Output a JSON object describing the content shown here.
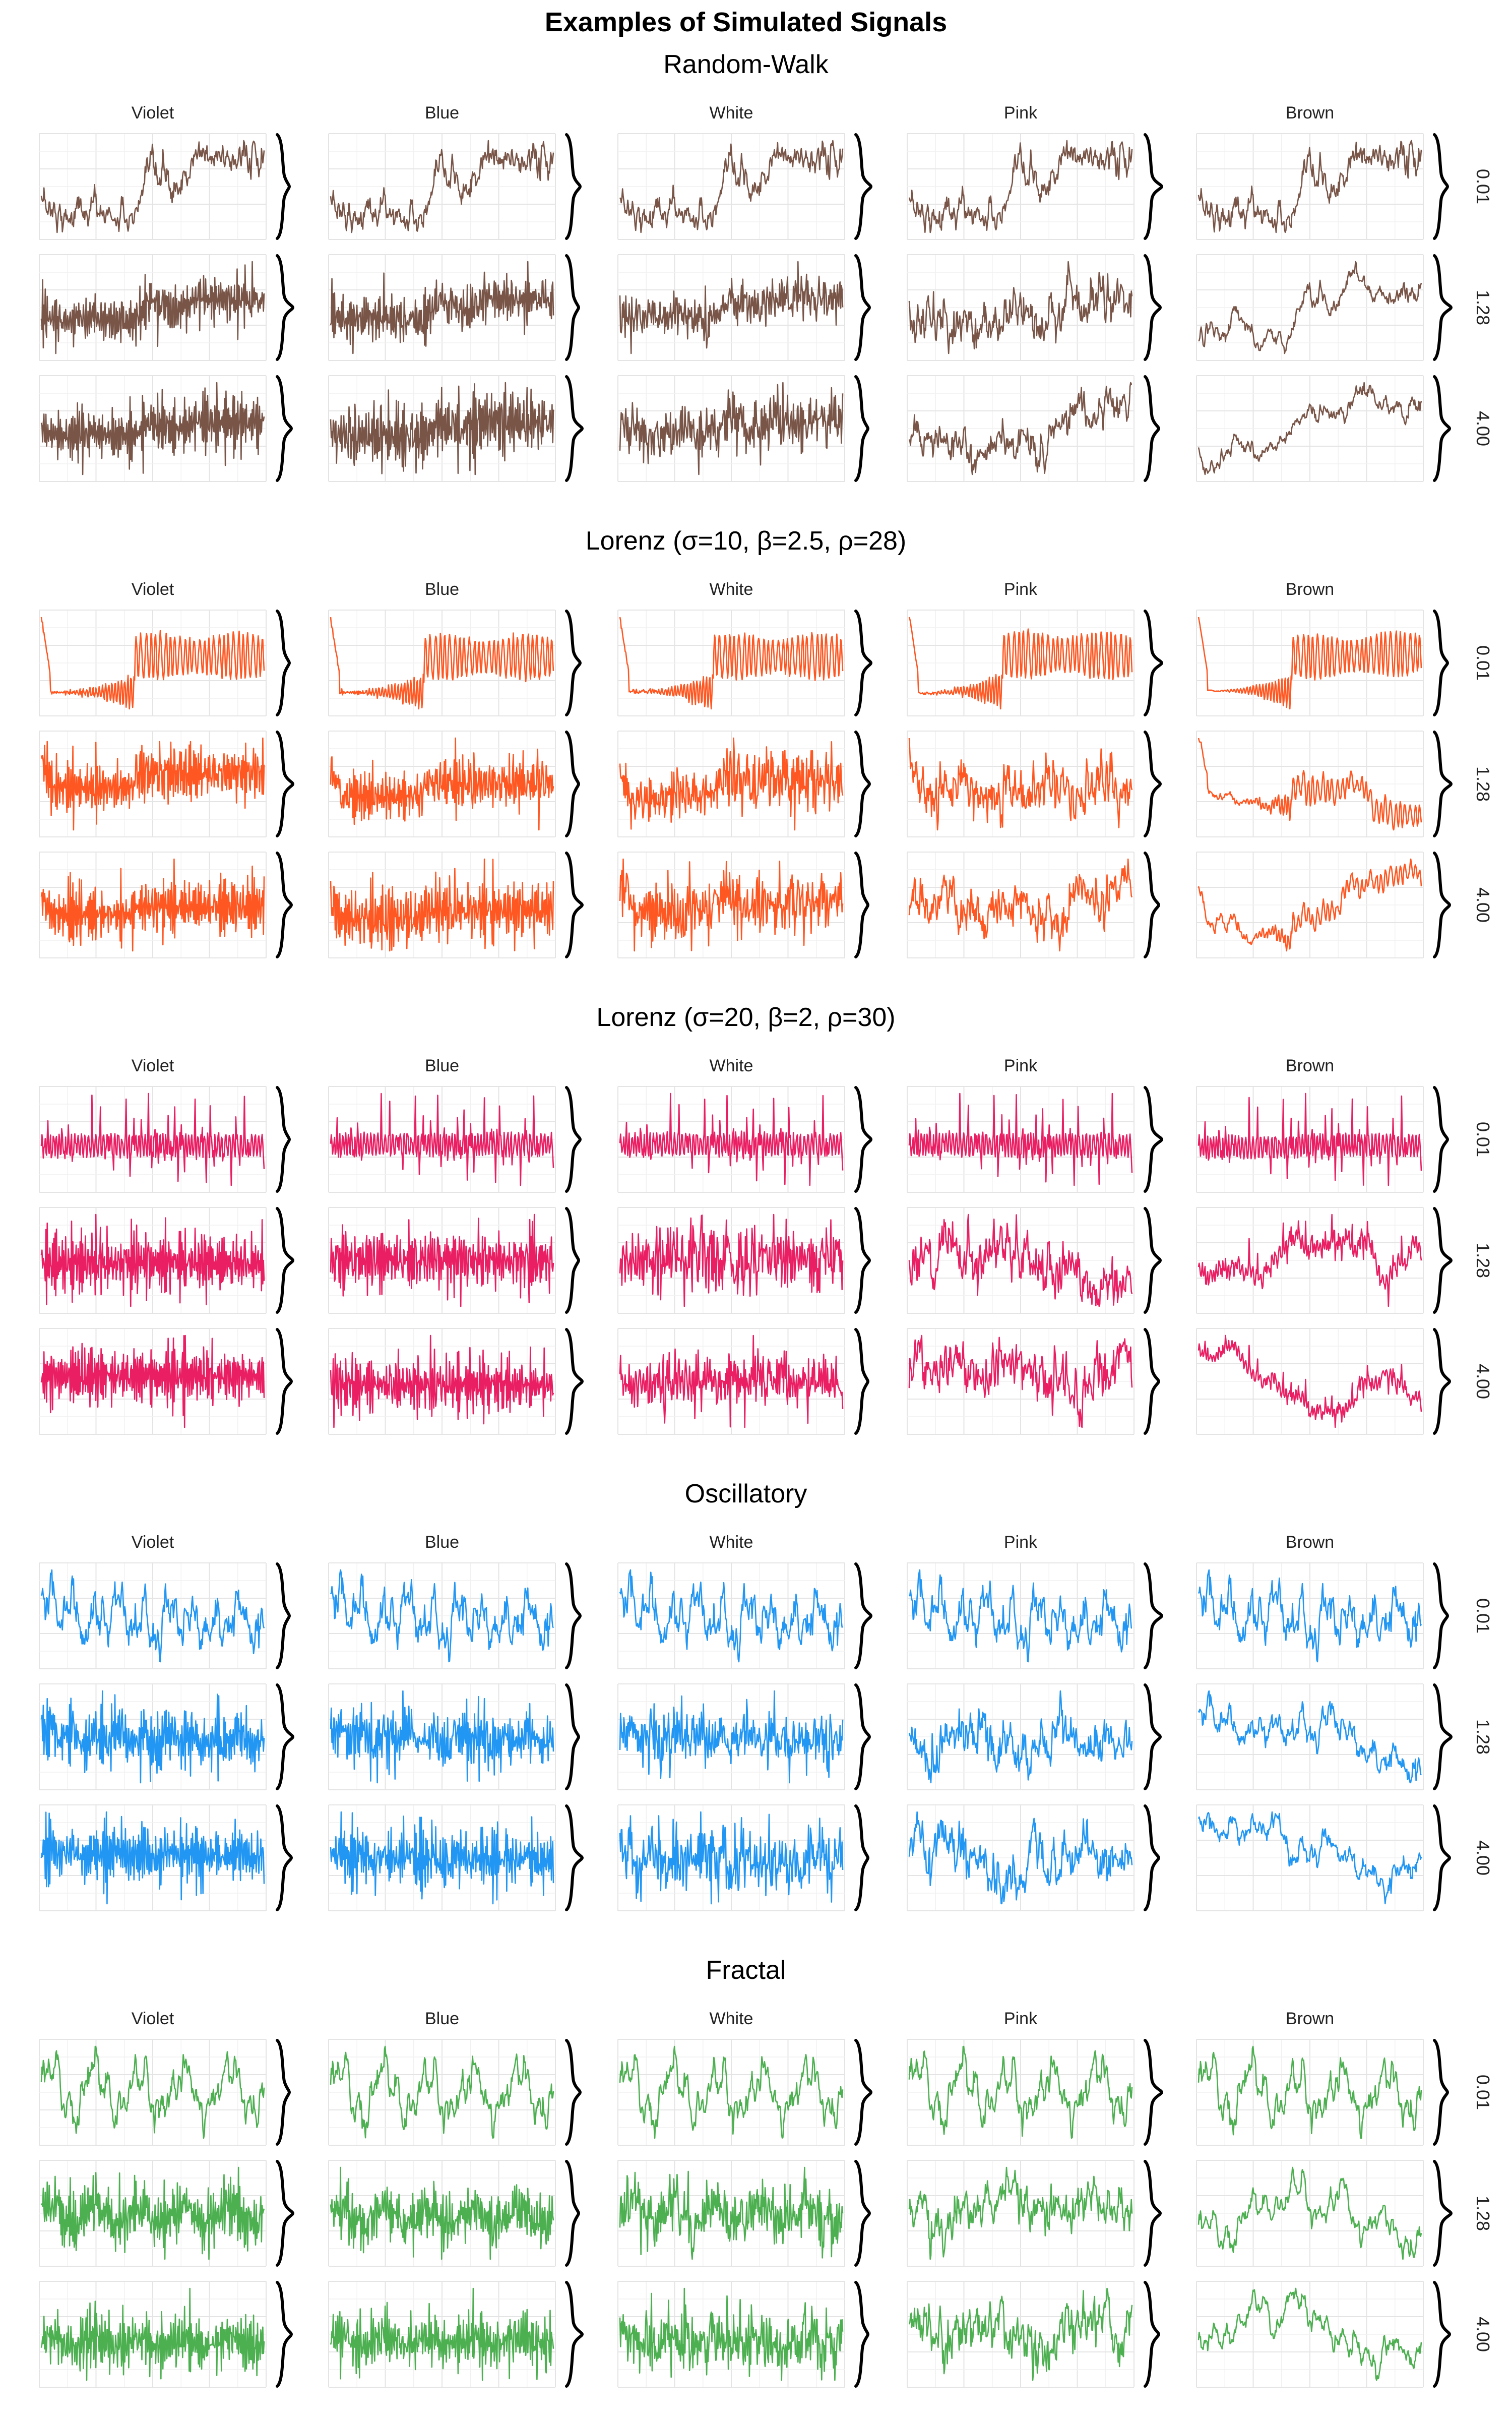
{
  "title": "Examples of Simulated Signals",
  "chart_data": {
    "type": "line",
    "title": "Examples of Simulated Signals",
    "facet_columns": [
      "Violet",
      "Blue",
      "White",
      "Pink",
      "Brown"
    ],
    "facet_rows": [
      "0.01",
      "1.28",
      "4.00"
    ],
    "grid": true,
    "marginal": "density curve per panel",
    "groups": [
      {
        "name": "Random-Walk",
        "color": "#795548",
        "style": "randomwalk"
      },
      {
        "name": "Lorenz (σ=10, β=2.5, ρ=28)",
        "color": "#FF5722",
        "style": "lorenz1"
      },
      {
        "name": "Lorenz (σ=20, β=2, ρ=30)",
        "color": "#E91E63",
        "style": "lorenz2"
      },
      {
        "name": "Oscillatory",
        "color": "#2196F3",
        "style": "oscillatory"
      },
      {
        "name": "Fractal",
        "color": "#4CAF50",
        "style": "fractal"
      }
    ]
  }
}
